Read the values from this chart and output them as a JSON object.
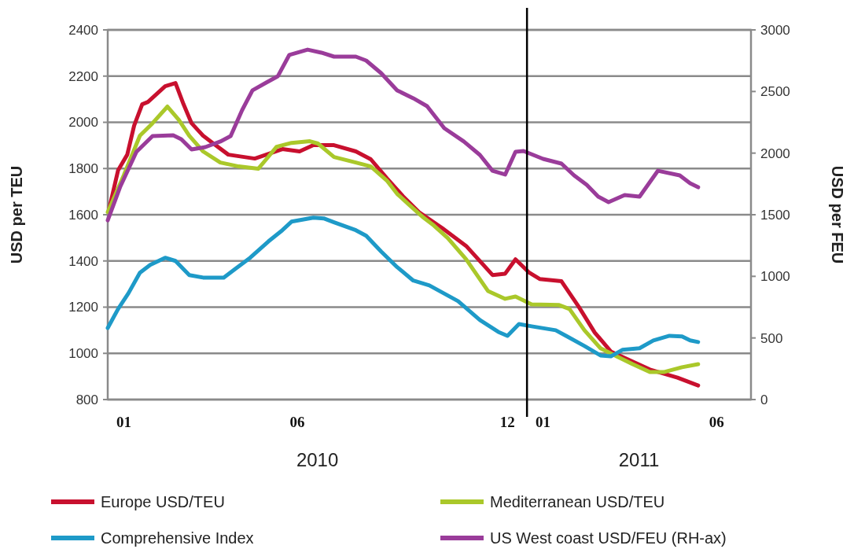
{
  "chart_data": {
    "type": "line",
    "ylabel": "USD per TEU",
    "y2label": "USD per FEU",
    "xlim": [
      "2010-01-01",
      "2011-07-15"
    ],
    "xticks": [
      {
        "value": "2010-01-15",
        "label": "01"
      },
      {
        "value": "2010-06-15",
        "label": "06"
      },
      {
        "value": "2010-12-15",
        "label": "12"
      },
      {
        "value": "2011-01-15",
        "label": "01"
      },
      {
        "value": "2011-06-15",
        "label": "06"
      }
    ],
    "ylim": [
      800,
      2400
    ],
    "yticks": [
      800,
      1000,
      1200,
      1400,
      1600,
      1800,
      2000,
      2200,
      2400
    ],
    "y2lim": [
      0,
      3000
    ],
    "y2ticks": [
      0,
      500,
      1000,
      1500,
      2000,
      2500,
      3000
    ],
    "grid": "y",
    "legend": "bottom",
    "line_style": "solid",
    "marker": "none",
    "ref_lines": [
      {
        "axis": "x",
        "value": "2011-01-01",
        "color": "#000000"
      }
    ],
    "annotations": [
      "2010",
      "2011"
    ],
    "series": [
      {
        "name": "Europe USD/TEU",
        "color": "#c8102e",
        "x": [
          "2010-01-02",
          "2010-01-10",
          "2010-01-18",
          "2010-01-24",
          "2010-01-31",
          "2010-02-05",
          "2010-02-20",
          "2010-03-01",
          "2010-03-08",
          "2010-03-15",
          "2010-03-25",
          "2010-04-03",
          "2010-04-16",
          "2010-05-09",
          "2010-05-19",
          "2010-06-02",
          "2010-06-17",
          "2010-06-29",
          "2010-07-17",
          "2010-08-05",
          "2010-08-18",
          "2010-09-01",
          "2010-09-15",
          "2010-09-29",
          "2010-10-12",
          "2010-10-19",
          "2010-11-09",
          "2010-12-02",
          "2010-12-13",
          "2010-12-22",
          "2011-01-03",
          "2011-01-12",
          "2011-01-31",
          "2011-02-15",
          "2011-03-01",
          "2011-03-15",
          "2011-04-03",
          "2011-04-18",
          "2011-05-12",
          "2011-05-30"
        ],
        "values": [
          1620,
          1792,
          1860,
          1986,
          2078,
          2088,
          2156,
          2170,
          2078,
          1996,
          1942,
          1908,
          1860,
          1843,
          1860,
          1884,
          1874,
          1901,
          1901,
          1874,
          1840,
          1758,
          1680,
          1611,
          1567,
          1543,
          1465,
          1339,
          1345,
          1407,
          1349,
          1322,
          1312,
          1202,
          1090,
          1008,
          964,
          930,
          895,
          861
        ]
      },
      {
        "name": "Mediterranean USD/TEU",
        "color": "#aac82a",
        "x": [
          "2010-01-01",
          "2010-01-15",
          "2010-01-29",
          "2010-02-09",
          "2010-02-22",
          "2010-03-04",
          "2010-03-13",
          "2010-03-25",
          "2010-04-09",
          "2010-04-25",
          "2010-05-12",
          "2010-05-19",
          "2010-05-28",
          "2010-06-10",
          "2010-06-26",
          "2010-07-03",
          "2010-07-17",
          "2010-08-05",
          "2010-08-18",
          "2010-09-01",
          "2010-09-10",
          "2010-09-20",
          "2010-10-03",
          "2010-10-12",
          "2010-10-24",
          "2010-11-09",
          "2010-11-28",
          "2010-12-13",
          "2010-12-22",
          "2011-01-05",
          "2011-01-29",
          "2011-02-07",
          "2011-02-20",
          "2011-03-06",
          "2011-03-20",
          "2011-04-03",
          "2011-04-18",
          "2011-04-30",
          "2011-05-16",
          "2011-05-30"
        ],
        "values": [
          1611,
          1771,
          1942,
          1996,
          2068,
          2010,
          1942,
          1874,
          1826,
          1809,
          1799,
          1840,
          1894,
          1911,
          1918,
          1908,
          1850,
          1826,
          1809,
          1748,
          1690,
          1645,
          1587,
          1553,
          1499,
          1407,
          1270,
          1236,
          1246,
          1212,
          1209,
          1192,
          1100,
          1022,
          987,
          953,
          919,
          919,
          940,
          953
        ]
      },
      {
        "name": "Comprehensive Index",
        "color": "#1e9ac8",
        "x": [
          "2010-01-01",
          "2010-01-10",
          "2010-01-19",
          "2010-01-29",
          "2010-02-07",
          "2010-02-20",
          "2010-03-01",
          "2010-03-13",
          "2010-03-25",
          "2010-04-12",
          "2010-04-21",
          "2010-05-05",
          "2010-05-21",
          "2010-06-02",
          "2010-06-10",
          "2010-06-29",
          "2010-07-08",
          "2010-07-17",
          "2010-08-05",
          "2010-08-14",
          "2010-08-27",
          "2010-09-10",
          "2010-09-24",
          "2010-10-08",
          "2010-11-02",
          "2010-11-21",
          "2010-12-07",
          "2010-12-15",
          "2010-12-25",
          "2011-01-05",
          "2011-01-26",
          "2011-02-04",
          "2011-02-20",
          "2011-03-06",
          "2011-03-15",
          "2011-03-25",
          "2011-04-09",
          "2011-04-21",
          "2011-05-05",
          "2011-05-16",
          "2011-05-23",
          "2011-05-30"
        ],
        "values": [
          1110,
          1192,
          1260,
          1349,
          1383,
          1414,
          1400,
          1339,
          1328,
          1328,
          1362,
          1414,
          1485,
          1533,
          1570,
          1587,
          1584,
          1567,
          1533,
          1509,
          1441,
          1373,
          1315,
          1294,
          1226,
          1144,
          1093,
          1076,
          1127,
          1117,
          1100,
          1076,
          1032,
          991,
          987,
          1015,
          1022,
          1056,
          1076,
          1073,
          1056,
          1049
        ]
      },
      {
        "name": "US West coast USD/FEU (RH-ax)",
        "color": "#9a3c9a",
        "axis": "y2",
        "x": [
          "2010-01-01",
          "2010-01-12",
          "2010-01-26",
          "2010-02-09",
          "2010-02-27",
          "2010-03-06",
          "2010-03-15",
          "2010-03-27",
          "2010-04-09",
          "2010-04-18",
          "2010-04-28",
          "2010-05-07",
          "2010-05-19",
          "2010-05-29",
          "2010-06-08",
          "2010-06-24",
          "2010-07-06",
          "2010-07-17",
          "2010-08-05",
          "2010-08-14",
          "2010-08-27",
          "2010-09-10",
          "2010-09-24",
          "2010-10-06",
          "2010-10-21",
          "2010-11-07",
          "2010-11-21",
          "2010-12-02",
          "2010-12-13",
          "2010-12-22",
          "2010-12-29",
          "2011-01-15",
          "2011-01-31",
          "2011-02-11",
          "2011-02-22",
          "2011-03-04",
          "2011-03-13",
          "2011-03-27",
          "2011-04-09",
          "2011-04-25",
          "2011-05-14",
          "2011-05-23",
          "2011-05-30"
        ],
        "values": [
          1455,
          1730,
          2011,
          2138,
          2145,
          2113,
          2030,
          2049,
          2094,
          2138,
          2349,
          2509,
          2572,
          2623,
          2796,
          2840,
          2815,
          2783,
          2783,
          2751,
          2649,
          2509,
          2445,
          2381,
          2202,
          2094,
          1985,
          1857,
          1826,
          2011,
          2017,
          1953,
          1915,
          1819,
          1742,
          1647,
          1602,
          1660,
          1647,
          1857,
          1819,
          1755,
          1723
        ]
      }
    ]
  }
}
